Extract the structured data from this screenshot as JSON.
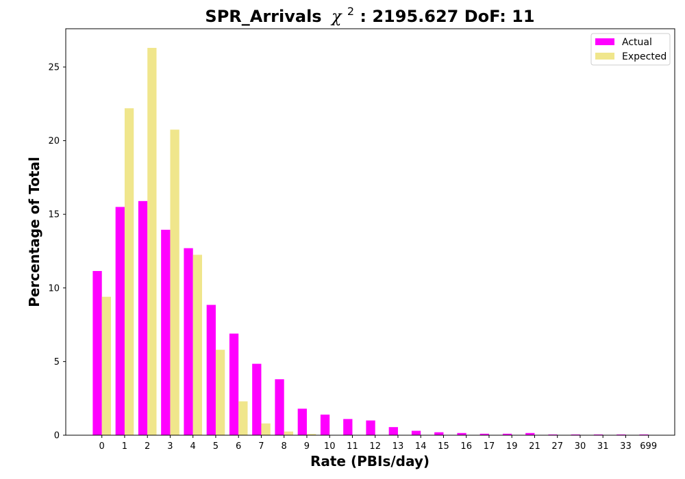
{
  "chart_data": {
    "type": "bar",
    "title_prefix": "SPR_Arrivals",
    "title_chi": "χ",
    "title_sup": "2",
    "title_suffix": ": 2195.627 DoF: 11",
    "xlabel": "Rate (PBIs/day)",
    "ylabel": "Percentage of Total",
    "ylim": [
      0,
      27.6
    ],
    "yticks": [
      "0",
      "5",
      "10",
      "15",
      "20",
      "25"
    ],
    "categories": [
      "0",
      "1",
      "2",
      "3",
      "4",
      "5",
      "6",
      "7",
      "8",
      "9",
      "10",
      "11",
      "12",
      "13",
      "14",
      "15",
      "16",
      "17",
      "19",
      "21",
      "27",
      "30",
      "31",
      "33",
      "699"
    ],
    "series": [
      {
        "name": "Actual",
        "color": "#ff00ff",
        "values": [
          11.15,
          15.5,
          15.9,
          13.95,
          12.7,
          8.85,
          6.9,
          4.85,
          3.8,
          1.8,
          1.4,
          1.1,
          1.0,
          0.55,
          0.3,
          0.2,
          0.15,
          0.1,
          0.1,
          0.15,
          0.05,
          0.05,
          0.05,
          0.05,
          0.05
        ]
      },
      {
        "name": "Expected",
        "color": "#f0e68c",
        "values": [
          9.4,
          22.2,
          26.3,
          20.75,
          12.25,
          5.8,
          2.3,
          0.8,
          0.25,
          0.08,
          0.02,
          0.0,
          0.0,
          0.0,
          0.0,
          0.0,
          0.0,
          0.0,
          0.0,
          0.0,
          0.0,
          0.0,
          0.0,
          0.0,
          0.0
        ]
      }
    ],
    "legend_position": "top-right",
    "grid": false
  }
}
